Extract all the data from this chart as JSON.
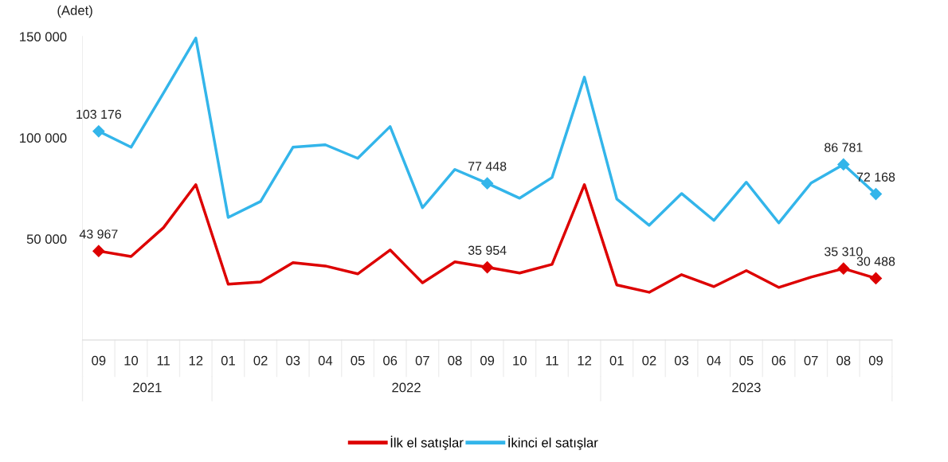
{
  "chart_data": {
    "type": "line",
    "ylabel": "(Adet)",
    "categories": [
      "09",
      "10",
      "11",
      "12",
      "01",
      "02",
      "03",
      "04",
      "05",
      "06",
      "07",
      "08",
      "09",
      "10",
      "11",
      "12",
      "01",
      "02",
      "03",
      "04",
      "05",
      "06",
      "07",
      "08",
      "09"
    ],
    "annotations": [
      "2021",
      "2022",
      "2023"
    ],
    "ylim": [
      0,
      150000
    ],
    "yticks": [
      {
        "value": 50000,
        "label": "50 000"
      },
      {
        "value": 100000,
        "label": "100 000"
      },
      {
        "value": 150000,
        "label": "150 000"
      }
    ],
    "grid": false,
    "legend": "bottom",
    "line_style": "solid",
    "series": [
      {
        "name": "İlk el satışlar",
        "color": "#dd0000",
        "values": [
          43967,
          41300,
          55500,
          76800,
          27600,
          28700,
          38200,
          36600,
          32700,
          44500,
          28300,
          38600,
          35954,
          33100,
          37400,
          76800,
          27200,
          23600,
          32300,
          26400,
          34300,
          26000,
          31100,
          35310,
          30488
        ],
        "value_labels": [
          "43 967",
          null,
          null,
          null,
          null,
          null,
          null,
          null,
          null,
          null,
          null,
          null,
          "35 954",
          null,
          null,
          null,
          null,
          null,
          null,
          null,
          null,
          null,
          null,
          "35 310",
          "30 488"
        ]
      },
      {
        "name": "İkinci el satışlar",
        "color": "#33b5ea",
        "values": [
          103176,
          95300,
          122000,
          149200,
          60600,
          68500,
          95300,
          96500,
          89800,
          105500,
          65400,
          84300,
          77448,
          70100,
          80300,
          129900,
          69700,
          56700,
          72400,
          59100,
          78000,
          57900,
          77600,
          86781,
          72168
        ],
        "value_labels": [
          "103 176",
          null,
          null,
          null,
          null,
          null,
          null,
          null,
          null,
          null,
          null,
          null,
          "77 448",
          null,
          null,
          null,
          null,
          null,
          null,
          null,
          null,
          null,
          null,
          "86 781",
          "72 168"
        ]
      }
    ]
  }
}
